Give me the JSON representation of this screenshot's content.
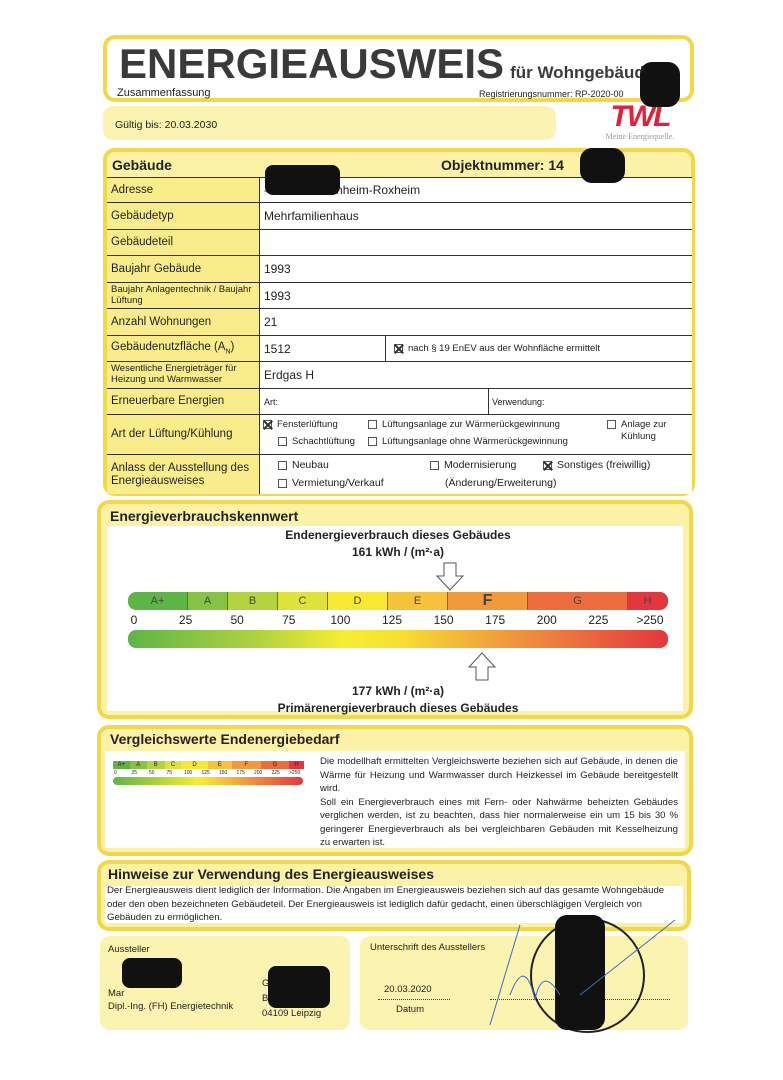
{
  "header": {
    "title": "ENERGIEAUSWEIS",
    "subtitle": "für Wohngebäude",
    "summary": "Zusammenfassung",
    "registration": "Registrierungsnummer: RP-2020-00",
    "valid_until": "Gültig bis: 20.03.2030"
  },
  "logo": {
    "text": "TWL",
    "tagline": "Meine Energiequelle.",
    "color": "#e3203a"
  },
  "building": {
    "title": "Gebäude",
    "object_number": "Objektnummer: 14",
    "rows": [
      {
        "label": "Adresse",
        "value": "- 67240 Bobenheim-Roxheim"
      },
      {
        "label": "Gebäudetyp",
        "value": "Mehrfamilienhaus"
      },
      {
        "label": "Gebäudeteil",
        "value": ""
      },
      {
        "label": "Baujahr Gebäude",
        "value": "1993"
      },
      {
        "label": "Baujahr Anlagentechnik / Baujahr Lüftung",
        "value": "1993"
      },
      {
        "label": "Anzahl Wohnungen",
        "value": "21"
      },
      {
        "label": "Gebäudenutzfläche (A",
        "label_sub": "N",
        "label_end": ")",
        "value": "1512",
        "note": "nach § 19 EnEV aus der Wohnfläche ermittelt",
        "note_checked": true
      },
      {
        "label": "Wesentliche Energieträger für Heizung und Warmwasser",
        "value": "Erdgas H"
      },
      {
        "label": "Erneuerbare Energien",
        "art": "Art:",
        "verwendung": "Verwendung:"
      },
      {
        "label": "Art der Lüftung/Kühlung",
        "options": [
          {
            "label": "Fensterlüftung",
            "checked": true
          },
          {
            "label": "Lüftungsanlage zur Wärmerückgewinnung",
            "checked": false
          },
          {
            "label": "Anlage zur Kühlung",
            "checked": false
          },
          {
            "label": "Schachtlüftung",
            "checked": false
          },
          {
            "label": "Lüftungsanlage ohne Wärmerückgewinnung",
            "checked": false
          }
        ]
      },
      {
        "label": "Anlass der Ausstellung des Energieausweises",
        "options": [
          {
            "label": "Neubau",
            "checked": false
          },
          {
            "label": "Modernisierung",
            "label2": "(Änderung/Erweiterung)",
            "checked": false
          },
          {
            "label": "Sonstiges (freiwillig)",
            "checked": true
          },
          {
            "label": "Vermietung/Verkauf",
            "checked": false
          }
        ]
      }
    ]
  },
  "consumption": {
    "title": "Energieverbrauchskennwert",
    "end_label": "Endenergieverbrauch dieses Gebäudes",
    "end_value_text": "161 kWh / (m²·a)",
    "end_value": 161,
    "primary_label": "Primärenergieverbrauch dieses Gebäudes",
    "primary_value_text": "177 kWh / (m²·a)",
    "primary_value": 177,
    "classes": [
      {
        "label": "A+",
        "from": 0,
        "to": 30
      },
      {
        "label": "A",
        "from": 30,
        "to": 50
      },
      {
        "label": "B",
        "from": 50,
        "to": 75
      },
      {
        "label": "C",
        "from": 75,
        "to": 100
      },
      {
        "label": "D",
        "from": 100,
        "to": 130
      },
      {
        "label": "E",
        "from": 130,
        "to": 160
      },
      {
        "label": "F",
        "from": 160,
        "to": 200
      },
      {
        "label": "G",
        "from": 200,
        "to": 250
      },
      {
        "label": "H",
        "from": 250,
        "to": 270
      }
    ],
    "ticks": [
      "0",
      "25",
      "50",
      "75",
      "100",
      "125",
      "150",
      "175",
      "200",
      "225",
      ">250"
    ],
    "highlighted_class": "F"
  },
  "comparison": {
    "title": "Vergleichswerte Endenergiebedarf",
    "mini_classes": [
      "A+",
      "A",
      "B",
      "C",
      "D",
      "E",
      "F",
      "G",
      "H"
    ],
    "mini_ticks": [
      "0",
      "25",
      "50",
      "75",
      "100",
      "125",
      "150",
      "175",
      "200",
      "225",
      ">250"
    ],
    "p1": "Die modellhaft ermittelten Vergleichswerte beziehen sich auf Gebäude, in denen die Wärme für Heizung und Warmwasser durch Heizkessel im Gebäude bereitgestellt wird.",
    "p2": "Soll ein Energieverbrauch eines mit Fern- oder Nahwärme beheizten Gebäudes verglichen werden, ist zu beachten, dass hier normalerweise ein um 15 bis 30 % geringerer Energieverbrauch als bei vergleichbaren Gebäuden mit Kesselheizung zu erwarten ist."
  },
  "notes": {
    "title": "Hinweise zur Verwendung des Energieausweises",
    "text": "Der Energieausweis dient lediglich der Information. Die Angaben im Energieausweis beziehen sich auf das gesamte Wohngebäude oder den oben bezeichneten Gebäudeteil. Der Energieausweis ist lediglich dafür gedacht, einen überschlägigen Vergleich von Gebäuden zu ermöglichen."
  },
  "issuer": {
    "label": "Aussteller",
    "name": "Mar",
    "degree": "Dipl.-Ing. (FH) Energietechnik",
    "addr1": "G",
    "addr2": "Br",
    "addr3": "04109 Leipzig"
  },
  "signature": {
    "label": "Unterschrift des Ausstellers",
    "date": "20.03.2020",
    "date_label": "Datum"
  }
}
